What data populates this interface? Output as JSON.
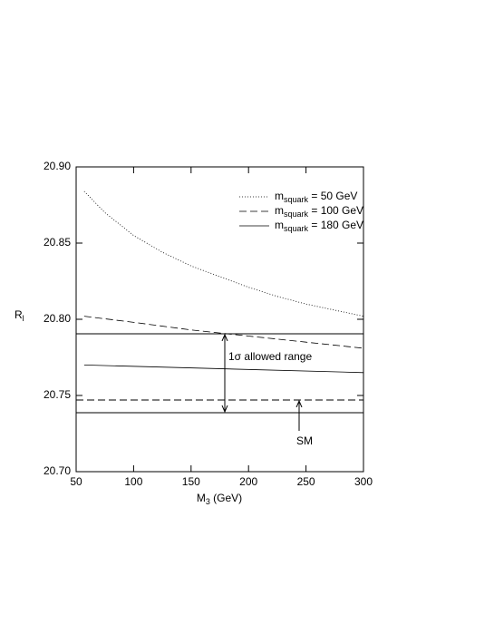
{
  "chart_data": {
    "type": "line",
    "xlabel": {
      "main": "M",
      "sub": "3",
      "suffix": " (GeV)"
    },
    "ylabel": {
      "main": "R",
      "sub": "l"
    },
    "xlim": [
      50,
      300
    ],
    "xticks": [
      50,
      100,
      150,
      200,
      250,
      300
    ],
    "ylim": [
      20.7,
      20.9
    ],
    "yticks": [
      {
        "value": 20.7,
        "label": "20.70"
      },
      20.75,
      {
        "value": 20.8,
        "label": "20.80"
      },
      20.85,
      {
        "value": 20.9,
        "label": "20.90"
      }
    ],
    "series": [
      {
        "name": "m",
        "name_sub": "squark",
        "name_suffix": " = 50 GeV",
        "color": "#000000",
        "dash": "dotted",
        "x": [
          57,
          75,
          100,
          125,
          150,
          175,
          200,
          225,
          250,
          275,
          300
        ],
        "values": [
          20.884,
          20.87,
          20.855,
          20.844,
          20.835,
          20.828,
          20.821,
          20.815,
          20.81,
          20.806,
          20.802
        ]
      },
      {
        "name": "m",
        "name_sub": "squark",
        "name_suffix": " = 100 GeV",
        "color": "#000000",
        "dash": "dashed",
        "x": [
          57,
          100,
          150,
          200,
          250,
          300
        ],
        "values": [
          20.802,
          20.798,
          20.793,
          20.789,
          20.785,
          20.781
        ]
      },
      {
        "name": "m",
        "name_sub": "squark",
        "name_suffix": " = 180 GeV",
        "color": "#000000",
        "dash": "solid",
        "x": [
          57,
          300
        ],
        "values": [
          20.77,
          20.765
        ]
      }
    ],
    "hlines": [
      {
        "value": 20.7905,
        "dash": "solid"
      },
      {
        "value": 20.7387,
        "dash": "solid"
      },
      {
        "value": 20.747,
        "dash": "dashed"
      }
    ],
    "annotations": {
      "range": "1σ allowed range",
      "sm": "SM"
    }
  }
}
